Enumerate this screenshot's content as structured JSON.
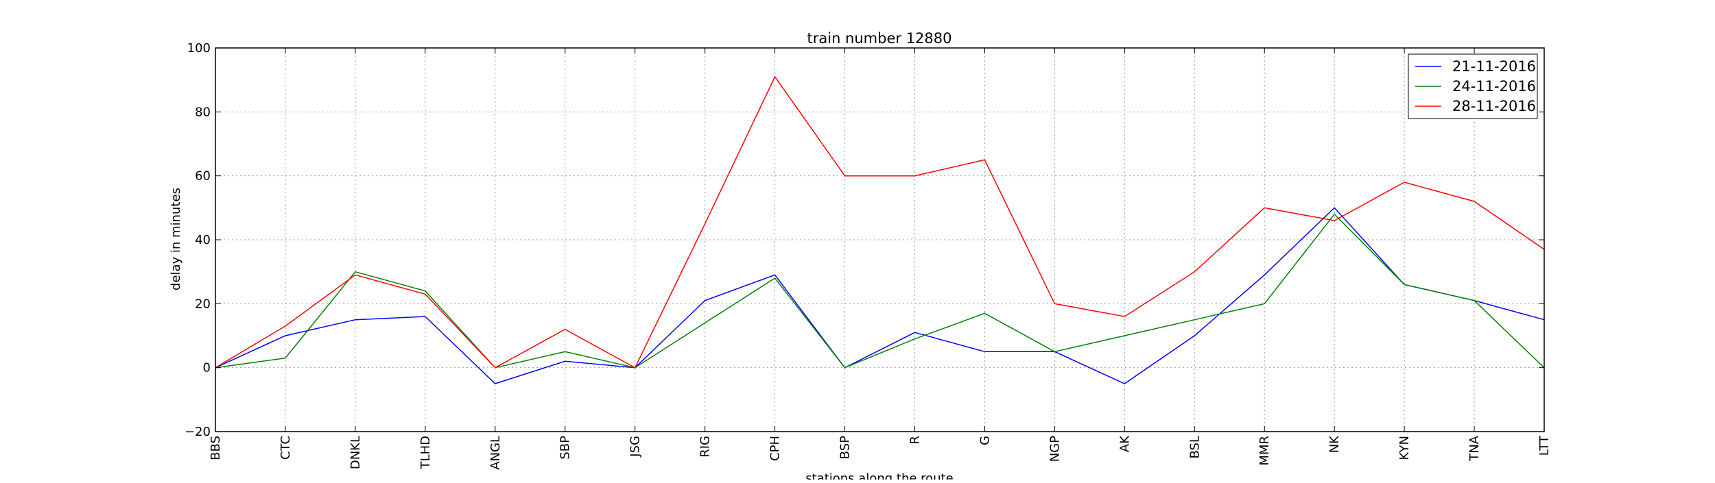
{
  "chart_data": {
    "type": "line",
    "title": "train number 12880",
    "xlabel": "stations along the route",
    "ylabel": "delay in minutes",
    "ylim": [
      -20,
      100
    ],
    "yticks": [
      "−20",
      "0",
      "20",
      "40",
      "60",
      "80",
      "100"
    ],
    "ytick_values": [
      -20,
      0,
      20,
      40,
      60,
      80,
      100
    ],
    "grid": true,
    "legend_position": "top-right",
    "categories": [
      "BBS",
      "CTC",
      "DNKL",
      "TLHD",
      "ANGL",
      "SBP",
      "JSG",
      "RIG",
      "CPH",
      "BSP",
      "R",
      "G",
      "NGP",
      "AK",
      "BSL",
      "MMR",
      "NK",
      "KYN",
      "TNA",
      "LTT"
    ],
    "series": [
      {
        "name": "21-11-2016",
        "color": "#0000ff",
        "values": [
          0,
          10,
          15,
          16,
          -5,
          2,
          0,
          21,
          29,
          0,
          11,
          5,
          5,
          -5,
          10,
          29,
          50,
          26,
          21,
          15
        ]
      },
      {
        "name": "24-11-2016",
        "color": "#008000",
        "values": [
          0,
          3,
          30,
          24,
          0,
          5,
          0,
          14,
          28,
          0,
          9,
          17,
          5,
          10,
          15,
          20,
          48,
          26,
          21,
          0
        ]
      },
      {
        "name": "28-11-2016",
        "color": "#ff0000",
        "values": [
          0,
          13,
          29,
          23,
          0,
          12,
          0,
          45,
          91,
          60,
          60,
          65,
          20,
          16,
          30,
          50,
          46,
          58,
          52,
          37
        ]
      }
    ]
  }
}
